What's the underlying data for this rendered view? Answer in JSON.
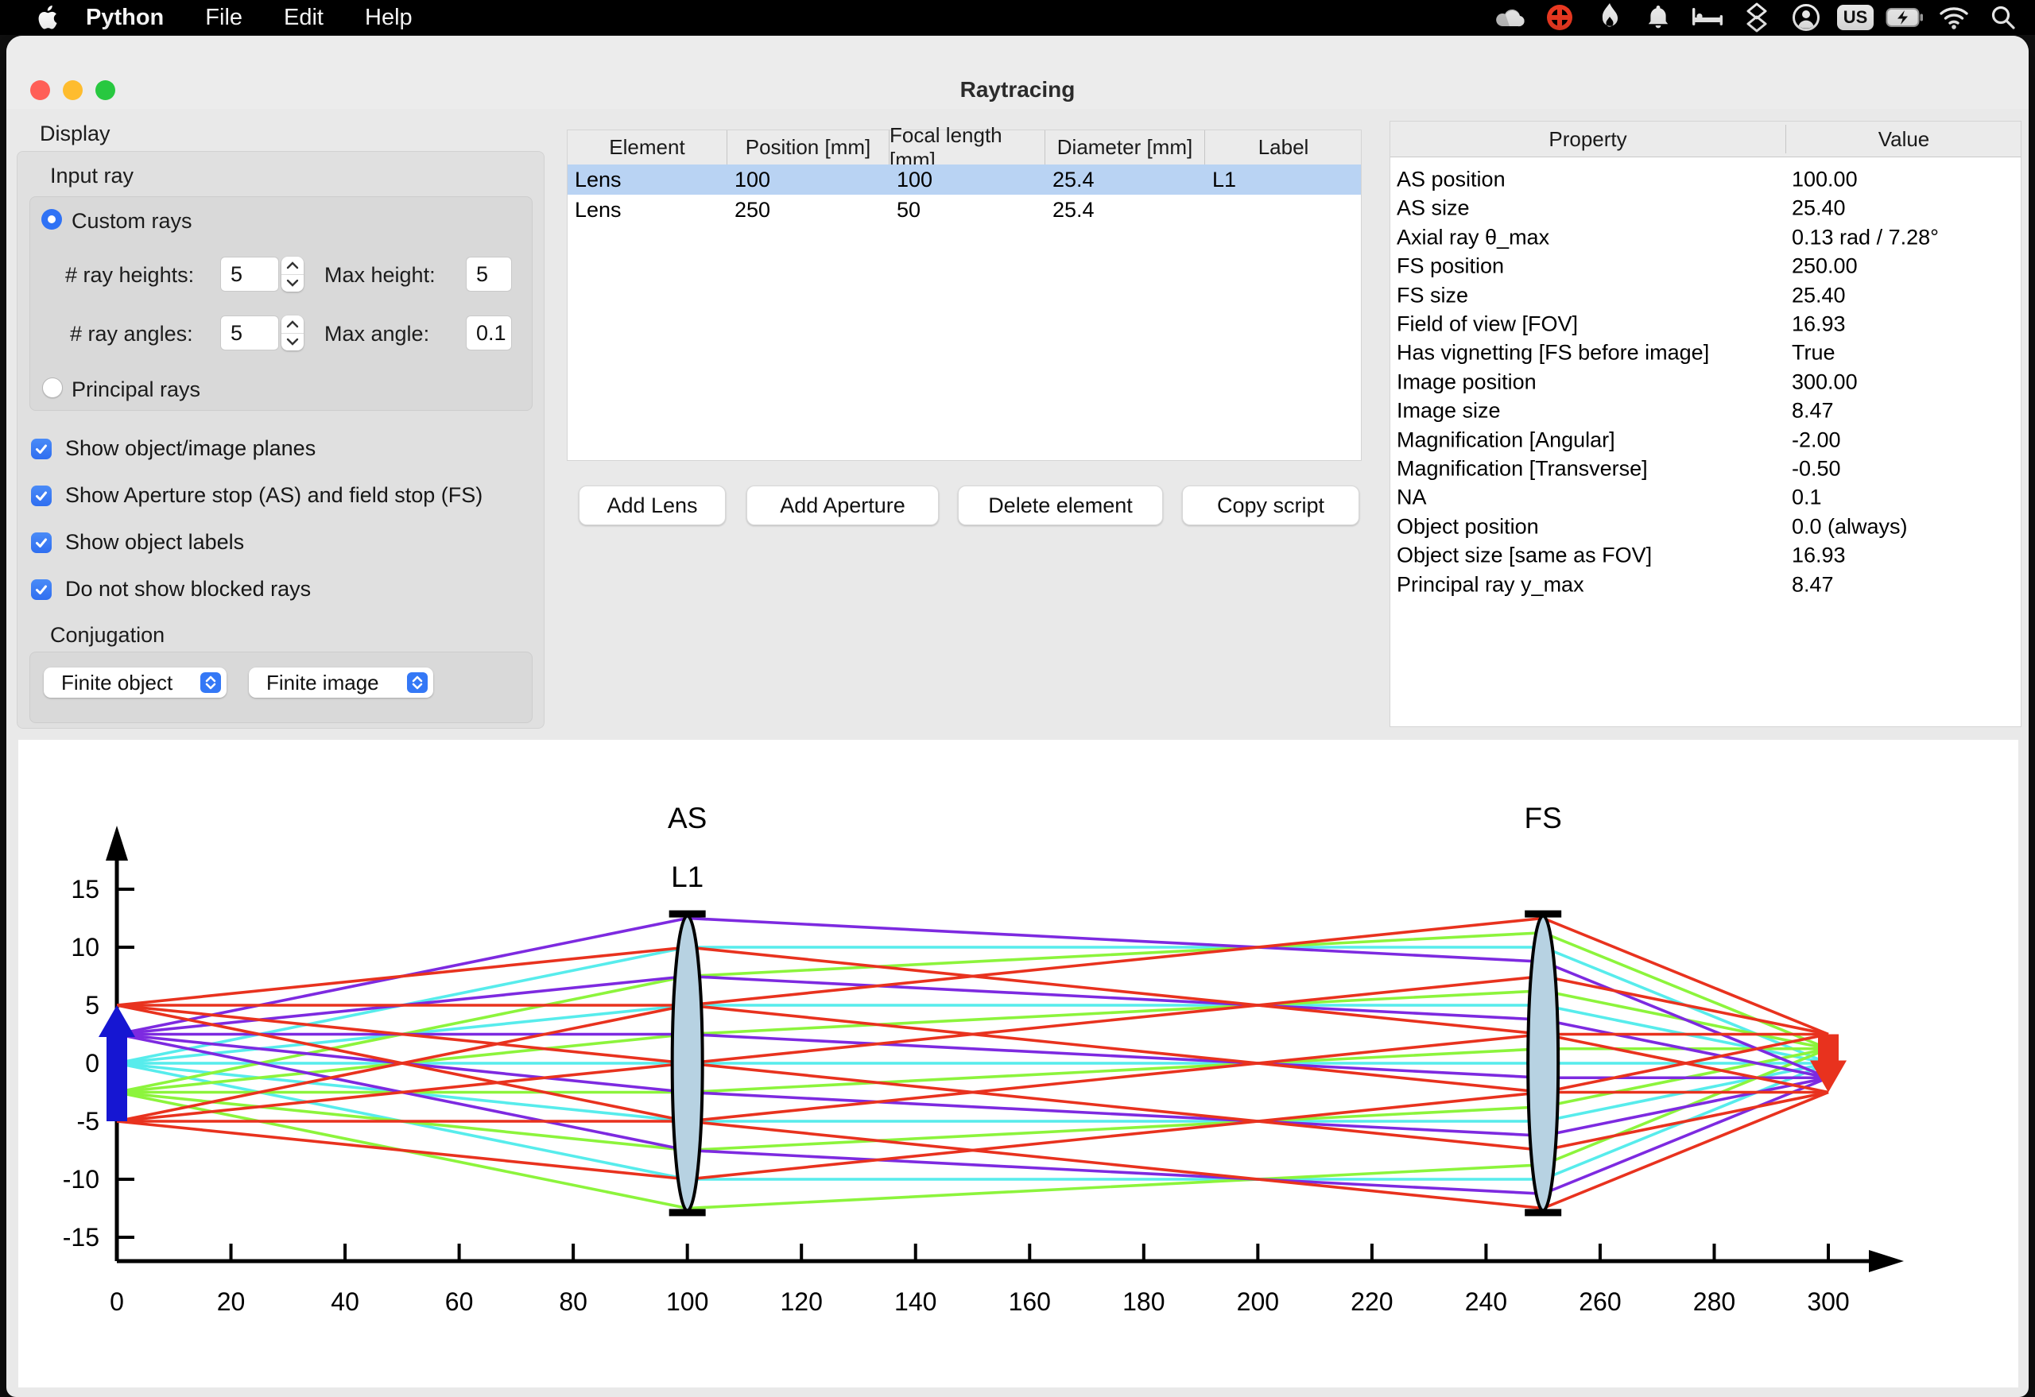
{
  "menubar": {
    "app_name": "Python",
    "items": [
      "File",
      "Edit",
      "Help"
    ],
    "keyboard_layout": "US",
    "status_icons": [
      "cloud",
      "plus-circle",
      "flame",
      "bell",
      "bed",
      "layers",
      "account",
      "keyboard-us",
      "battery-charging",
      "wifi",
      "search"
    ]
  },
  "window": {
    "title": "Raytracing"
  },
  "display_panel": {
    "title": "Display",
    "input_ray": {
      "title": "Input ray",
      "custom_rays": {
        "label": "Custom rays",
        "selected": true
      },
      "principal_rays": {
        "label": "Principal rays",
        "selected": false
      },
      "ray_heights": {
        "label": "# ray heights:",
        "value": "5"
      },
      "max_height": {
        "label": "Max height:",
        "value": "5"
      },
      "ray_angles": {
        "label": "# ray angles:",
        "value": "5"
      },
      "max_angle": {
        "label": "Max angle:",
        "value": "0.1"
      }
    },
    "checkboxes": [
      {
        "label": "Show object/image planes",
        "checked": true
      },
      {
        "label": "Show Aperture stop (AS) and field stop (FS)",
        "checked": true
      },
      {
        "label": "Show object labels",
        "checked": true
      },
      {
        "label": "Do not show blocked rays",
        "checked": true
      }
    ],
    "conjugation": {
      "title": "Conjugation",
      "object_value": "Finite object",
      "image_value": "Finite image"
    }
  },
  "element_table": {
    "columns": [
      "Element",
      "Position [mm]",
      "Focal length [mm]",
      "Diameter [mm]",
      "Label"
    ],
    "rows": [
      {
        "cells": [
          "Lens",
          "100",
          "100",
          "25.4",
          "L1"
        ],
        "selected": true
      },
      {
        "cells": [
          "Lens",
          "250",
          "50",
          "25.4",
          ""
        ],
        "selected": false
      }
    ]
  },
  "actions": {
    "add_lens": "Add Lens",
    "add_aperture": "Add Aperture",
    "delete_element": "Delete element",
    "copy_script": "Copy script"
  },
  "property_table": {
    "columns": [
      "Property",
      "Value"
    ],
    "rows": [
      [
        "AS position",
        "100.00"
      ],
      [
        "AS size",
        "25.40"
      ],
      [
        "Axial ray θ_max",
        "0.13 rad / 7.28°"
      ],
      [
        "FS position",
        "250.00"
      ],
      [
        "FS size",
        "25.40"
      ],
      [
        "Field of view [FOV]",
        "16.93"
      ],
      [
        "Has vignetting [FS before image]",
        "True"
      ],
      [
        "Image position",
        "300.00"
      ],
      [
        "Image size",
        "8.47"
      ],
      [
        "Magnification [Angular]",
        "-2.00"
      ],
      [
        "Magnification [Transverse]",
        "-0.50"
      ],
      [
        "NA",
        "0.1"
      ],
      [
        "Object position",
        "0.0 (always)"
      ],
      [
        "Object size [same as FOV]",
        "16.93"
      ],
      [
        "Principal ray y_max",
        "8.47"
      ]
    ]
  },
  "chart_data": {
    "type": "line",
    "title": "",
    "xlabel": "",
    "ylabel": "",
    "xlim": [
      0,
      313
    ],
    "ylim": [
      -16.5,
      20
    ],
    "grid": false,
    "xticks": [
      0,
      20,
      40,
      60,
      80,
      100,
      120,
      140,
      160,
      180,
      200,
      220,
      240,
      260,
      280,
      300
    ],
    "yticks": [
      -15,
      -10,
      -5,
      0,
      5,
      10,
      15
    ],
    "ray_x": [
      0,
      100,
      250,
      300
    ],
    "rays": [
      {
        "c": "#57ecec",
        "y": [
          0,
          10,
          10,
          0
        ]
      },
      {
        "c": "#57ecec",
        "y": [
          0,
          5,
          5,
          0
        ]
      },
      {
        "c": "#57ecec",
        "y": [
          0,
          0,
          0,
          0
        ]
      },
      {
        "c": "#57ecec",
        "y": [
          0,
          -5,
          -5,
          0
        ]
      },
      {
        "c": "#57ecec",
        "y": [
          0,
          -10,
          -10,
          0
        ]
      },
      {
        "c": "#8cf43c",
        "y": [
          -2.5,
          7.5,
          11.25,
          1.25
        ]
      },
      {
        "c": "#8cf43c",
        "y": [
          -2.5,
          2.5,
          6.25,
          1.25
        ]
      },
      {
        "c": "#8cf43c",
        "y": [
          -2.5,
          -2.5,
          1.25,
          1.25
        ]
      },
      {
        "c": "#8cf43c",
        "y": [
          -2.5,
          -7.5,
          -3.75,
          1.25
        ]
      },
      {
        "c": "#8cf43c",
        "y": [
          -2.5,
          -12.5,
          -8.75,
          1.25
        ]
      },
      {
        "c": "#7d2ae0",
        "y": [
          2.5,
          12.5,
          8.75,
          -1.25
        ]
      },
      {
        "c": "#7d2ae0",
        "y": [
          2.5,
          7.5,
          3.75,
          -1.25
        ]
      },
      {
        "c": "#7d2ae0",
        "y": [
          2.5,
          2.5,
          -1.25,
          -1.25
        ]
      },
      {
        "c": "#7d2ae0",
        "y": [
          2.5,
          -2.5,
          -6.25,
          -1.25
        ]
      },
      {
        "c": "#7d2ae0",
        "y": [
          2.5,
          -7.5,
          -11.25,
          -1.25
        ]
      },
      {
        "c": "#e8321e",
        "y": [
          5,
          10,
          2.5,
          -2.5
        ]
      },
      {
        "c": "#e8321e",
        "y": [
          5,
          5,
          -2.5,
          -2.5
        ]
      },
      {
        "c": "#e8321e",
        "y": [
          5,
          0,
          -7.5,
          -2.5
        ]
      },
      {
        "c": "#e8321e",
        "y": [
          5,
          -5,
          -12.5,
          -2.5
        ]
      },
      {
        "c": "#e8321e",
        "y": [
          -5,
          5,
          12.5,
          2.5
        ]
      },
      {
        "c": "#e8321e",
        "y": [
          -5,
          0,
          7.5,
          2.5
        ]
      },
      {
        "c": "#e8321e",
        "y": [
          -5,
          -5,
          2.5,
          2.5
        ]
      },
      {
        "c": "#e8321e",
        "y": [
          -5,
          -10,
          -2.5,
          2.5
        ]
      }
    ],
    "lenses": [
      {
        "x": 100,
        "half_diameter": 12.7,
        "labels": [
          "AS",
          "L1"
        ],
        "fill": "#b7d2e2"
      },
      {
        "x": 250,
        "half_diameter": 12.7,
        "labels": [
          "FS"
        ],
        "fill": "#b7d2e2"
      }
    ],
    "object_arrow": {
      "x": 0,
      "base": -5,
      "tip": 5,
      "color": "#1616d2"
    },
    "image_arrow": {
      "x": 300,
      "base": 2.5,
      "tip": -2.5,
      "color": "#e8321e"
    },
    "axis_color": "#000000"
  }
}
